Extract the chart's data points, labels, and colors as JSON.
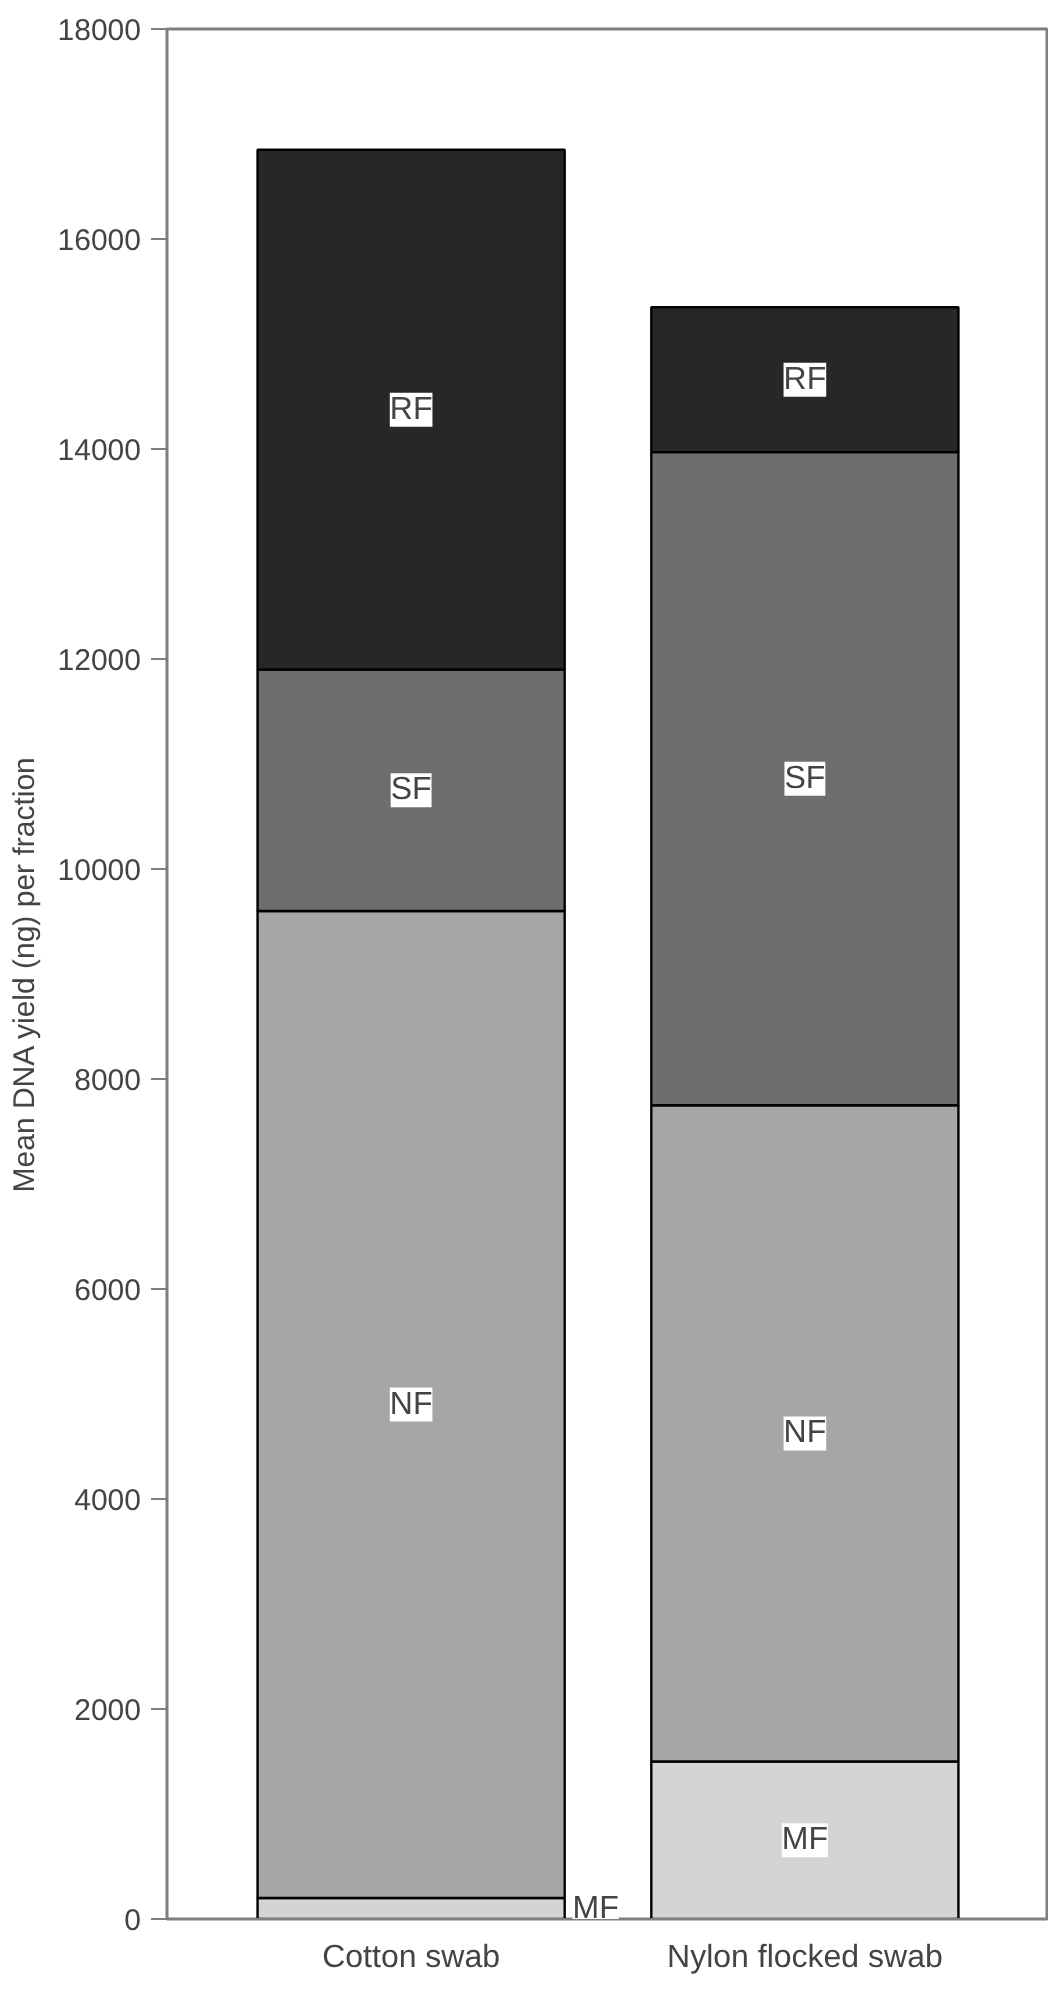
{
  "chart_data": {
    "type": "bar",
    "stacked": true,
    "ylabel": "Mean DNA yield (ng) per fraction",
    "categories": [
      "Cotton swab",
      "Nylon flocked swab"
    ],
    "series": [
      {
        "name": "MF",
        "color": "#d4d4d4",
        "values": [
          200,
          1500
        ]
      },
      {
        "name": "NF",
        "color": "#a6a6a6",
        "values": [
          9400,
          6250
        ]
      },
      {
        "name": "SF",
        "color": "#6e6e6e",
        "values": [
          2300,
          6220
        ]
      },
      {
        "name": "RF",
        "color": "#272727",
        "values": [
          4950,
          1380
        ]
      }
    ],
    "ylim": [
      0,
      18000
    ],
    "yticks": [
      0,
      2000,
      4000,
      6000,
      8000,
      10000,
      12000,
      14000,
      16000,
      18000
    ],
    "grid": false,
    "legend": false
  }
}
